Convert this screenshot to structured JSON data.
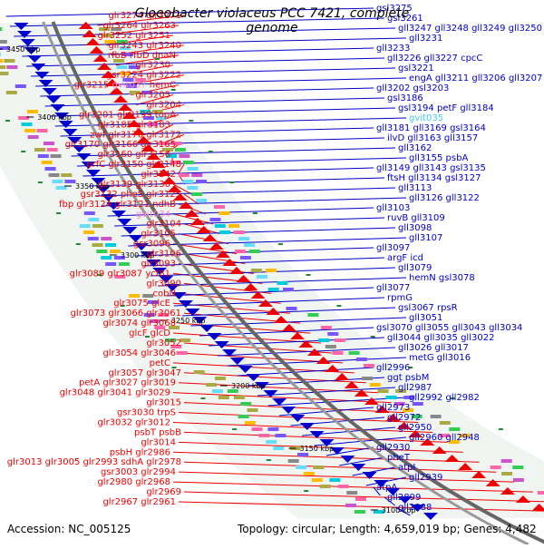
{
  "title": "Gloeobacter violaceus PCC 7421, complete genome",
  "footer": {
    "accession": "Accession: NC_005125",
    "summary": "Topology: circular; Length: 4,659,019 bp; Genes: 4,482"
  },
  "colors": {
    "forward": "#ee0000",
    "reverse": "#0000cc",
    "rna": "#ff88cc",
    "rna_rev": "#44ccee"
  },
  "scale_labels": [
    "3450 kbp",
    "3400 kbp",
    "3350 kbp",
    "3300 kbp",
    "3250 kbp",
    "3200 kbp",
    "3150 kbp",
    "3100 kbp"
  ],
  "left_labels": [
    [
      "glr3274",
      "glr3271"
    ],
    [
      "glr3264",
      "glr3263"
    ],
    [
      "glr3252",
      "glr3251"
    ],
    [
      "glr3243",
      "glr3240"
    ],
    [
      "rfbB",
      "rfbD",
      "dnaN"
    ],
    [
      "glr3230"
    ],
    [
      "gsr3224",
      "glr3222"
    ],
    [
      "glr3215",
      "gvit037",
      "hemC"
    ],
    [
      "glr3205"
    ],
    [
      "glr3204"
    ],
    [
      "glr3201",
      "glr3199",
      "topA"
    ],
    [
      "glr3185",
      "glr3183"
    ],
    [
      "zwf",
      "glr3176",
      "glr3172"
    ],
    [
      "glr3170",
      "glr3166",
      "glr3165"
    ],
    [
      "glr3160",
      "glr3156"
    ],
    [
      "prfC",
      "glr3150",
      "glr3148"
    ],
    [
      "glr3142"
    ],
    [
      "glr3139",
      "glr3136"
    ],
    [
      "gsr3132",
      "pheS",
      "glr3125"
    ],
    [
      "fbp",
      "glr3124",
      "glr3121",
      "ndhB"
    ],
    [
      "gvit034"
    ],
    [
      "glr3104"
    ],
    [
      "glr3105"
    ],
    [
      "gsr3096"
    ],
    [
      "glr3106"
    ],
    [
      "glr3093"
    ],
    [
      "glr3089",
      "glr3087",
      "ycf81"
    ],
    [
      "glr3090"
    ],
    [
      "cobN"
    ],
    [
      "glr3075",
      "glcE"
    ],
    [
      "glr3073",
      "glr3066",
      "glr3061"
    ],
    [
      "glr3074",
      "glr3068"
    ],
    [
      "glcF",
      "glcD"
    ],
    [
      "glr3052"
    ],
    [
      "glr3054",
      "glr3046"
    ],
    [
      "petC"
    ],
    [
      "glr3057",
      "glr3047"
    ],
    [
      "petA",
      "glr3027",
      "glr3019"
    ],
    [
      "glr3048",
      "glr3041",
      "glr3029"
    ],
    [
      "glr3015"
    ],
    [
      "gsr3030",
      "trpS"
    ],
    [
      "glr3032",
      "glr3012"
    ],
    [
      "psbT",
      "psbB"
    ],
    [
      "glr3014"
    ],
    [
      "psbH",
      "glr2986"
    ],
    [
      "glr3013",
      "glr3005",
      "glr2993",
      "sdhA",
      "glr2978"
    ],
    [
      "gsr3003",
      "glr2994"
    ],
    [
      "glr2980",
      "glr2968"
    ],
    [
      "glr2969"
    ],
    [
      "glr2967",
      "glr2961"
    ]
  ],
  "right_labels": [
    [
      "gsl3275"
    ],
    [
      "gsl3261"
    ],
    [
      "gll3247",
      "gll3248",
      "gll3249",
      "gll3250"
    ],
    [
      "gll3231"
    ],
    [
      "gll3233"
    ],
    [
      "gll3226",
      "gll3227",
      "cpcC"
    ],
    [
      "gsl3221"
    ],
    [
      "engA",
      "gll3211",
      "gll3206",
      "gll3207"
    ],
    [
      "gll3202",
      "gsl3203"
    ],
    [
      "gsl3186"
    ],
    [
      "gsl3194",
      "petF",
      "gll3184"
    ],
    [
      "gvit035"
    ],
    [
      "gll3181",
      "gll3169",
      "gsl3164"
    ],
    [
      "ilvD",
      "gll3163",
      "gll3157"
    ],
    [
      "gll3162"
    ],
    [
      "gll3155",
      "psbA"
    ],
    [
      "gll3149",
      "gll3143",
      "gsl3135"
    ],
    [
      "ftsH",
      "gll3134",
      "gsl3127"
    ],
    [
      "gll3113"
    ],
    [
      "gll3126",
      "gll3122"
    ],
    [
      "gll3103"
    ],
    [
      "ruvB",
      "gll3109"
    ],
    [
      "gll3098"
    ],
    [
      "gll3107"
    ],
    [
      "gll3097"
    ],
    [
      "argF",
      "icd"
    ],
    [
      "gll3079"
    ],
    [
      "hemN",
      "gsl3078"
    ],
    [
      "gll3077"
    ],
    [
      "rpmG"
    ],
    [
      "gsl3067",
      "rpsR"
    ],
    [
      "gll3051"
    ],
    [
      "gsl3070",
      "gll3055",
      "gll3043",
      "gll3034"
    ],
    [
      "gll3044",
      "gll3035",
      "gll3022"
    ],
    [
      "gll3026",
      "gll3017"
    ],
    [
      "metG",
      "gll3016"
    ],
    [
      "gll2996"
    ],
    [
      "ggt",
      "psbM"
    ],
    [
      "gll2987"
    ],
    [
      "gll2992",
      "gll2982"
    ],
    [
      "gll2973"
    ],
    [
      "gll2972"
    ],
    [
      "gll2950"
    ],
    [
      "gll2960",
      "gll2948"
    ],
    [
      "gll2930"
    ],
    [
      "pheT"
    ],
    [
      "atpI"
    ],
    [
      "gll2939"
    ],
    [
      "atpA"
    ],
    [
      "gll2899"
    ],
    [
      "gll2888"
    ]
  ]
}
